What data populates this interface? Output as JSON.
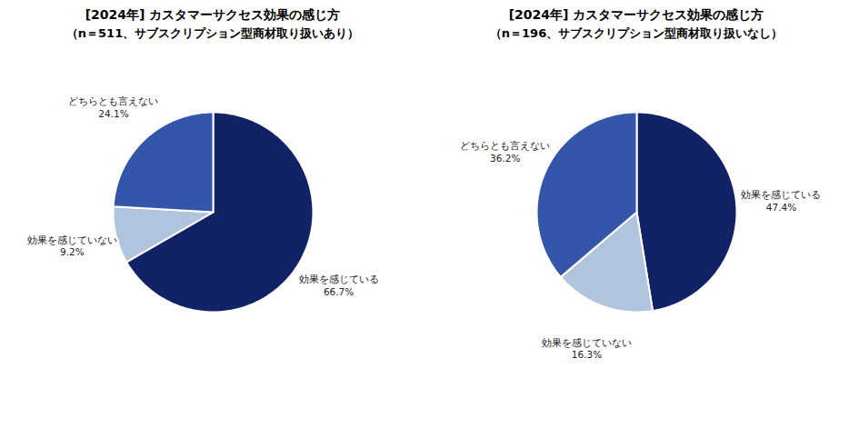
{
  "chart_data": [
    {
      "type": "pie",
      "title": "[2024年] カスタマーサクセス効果の感じ方",
      "subtitle": "（n＝511、サブスクリプション型商材取り扱いあり）",
      "categories": [
        "効果を感じている",
        "効果を感じていない",
        "どちらとも言えない"
      ],
      "values": [
        66.7,
        9.2,
        24.1
      ],
      "value_labels": [
        "66.7%",
        "9.2%",
        "24.1%"
      ],
      "colors": [
        "#112266",
        "#b0c4de",
        "#3355aa"
      ],
      "data_labels": true
    },
    {
      "type": "pie",
      "title": "[2024年] カスタマーサクセス効果の感じ方",
      "subtitle": "（n＝196、サブスクリプション型商材取り扱いなし）",
      "categories": [
        "効果を感じている",
        "効果を感じていない",
        "どちらとも言えない"
      ],
      "values": [
        47.4,
        16.3,
        36.2
      ],
      "value_labels": [
        "47.4%",
        "16.3%",
        "36.2%"
      ],
      "colors": [
        "#112266",
        "#b0c4de",
        "#3355aa"
      ],
      "data_labels": true
    }
  ]
}
